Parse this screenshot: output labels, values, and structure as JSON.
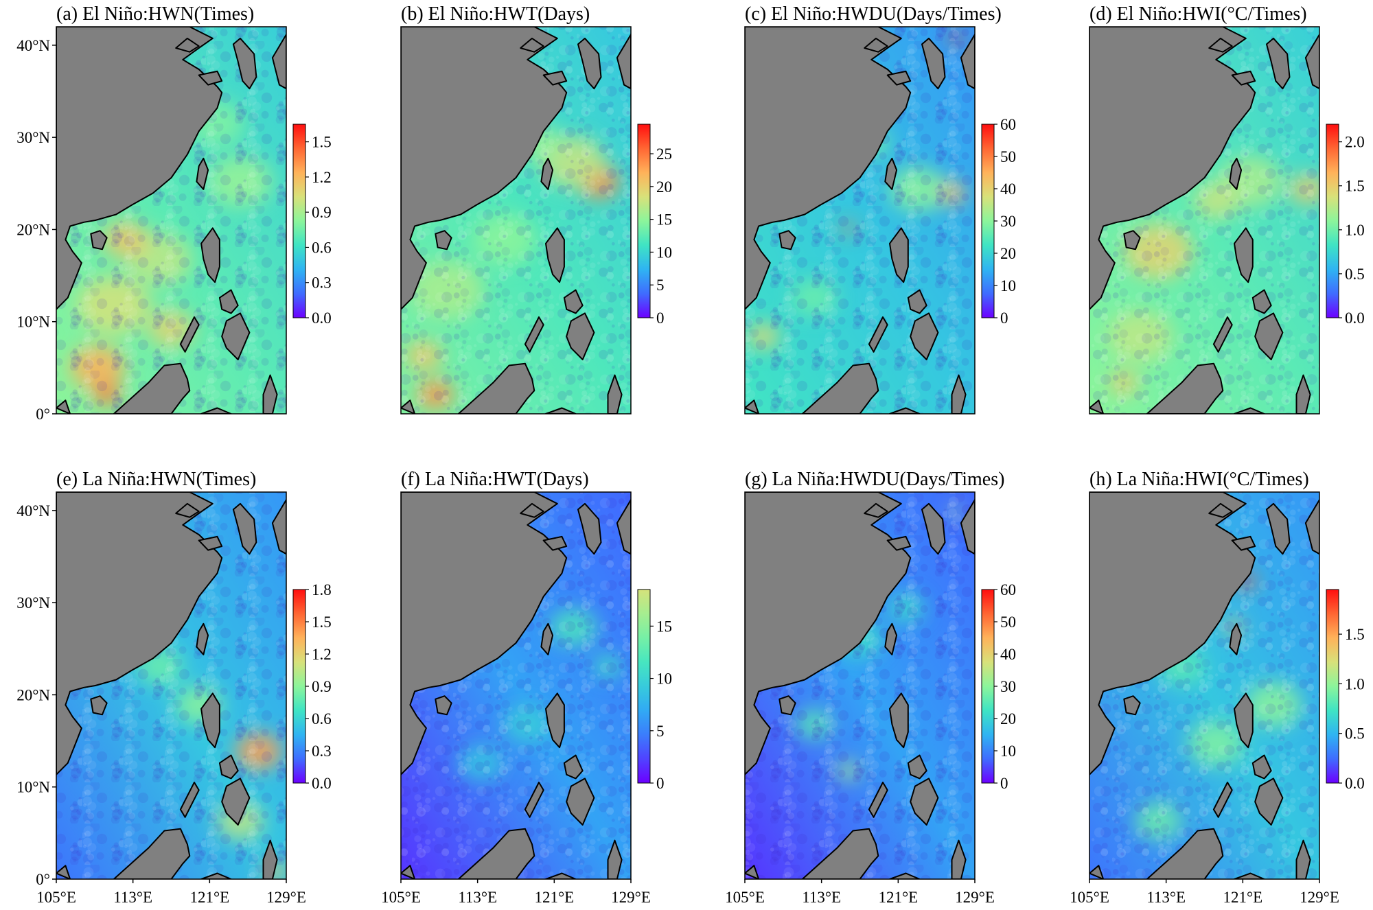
{
  "figure": {
    "panels": [
      {
        "id": "a",
        "title": "(a) El Niño:HWN(Times)",
        "ticks": [
          "0.0",
          "0.3",
          "0.6",
          "0.9",
          "1.2",
          "1.5"
        ],
        "max": 1.65,
        "state": "elnino",
        "variant": 0
      },
      {
        "id": "b",
        "title": "(b) El Niño:HWT(Days)",
        "ticks": [
          "0",
          "5",
          "10",
          "15",
          "20",
          "25"
        ],
        "max": 29.5,
        "state": "elnino",
        "variant": 1
      },
      {
        "id": "c",
        "title": "(c) El Niño:HWDU(Days/Times)",
        "ticks": [
          "0",
          "10",
          "20",
          "30",
          "40",
          "50",
          "60"
        ],
        "max": 60,
        "state": "elnino",
        "variant": 2
      },
      {
        "id": "d",
        "title": "(d) El Niño:HWI(°C/Times)",
        "ticks": [
          "0.0",
          "0.5",
          "1.0",
          "1.5",
          "2.0"
        ],
        "max": 2.2,
        "state": "elnino",
        "variant": 3
      },
      {
        "id": "e",
        "title": "(e) La Niña:HWN(Times)",
        "ticks": [
          "0.0",
          "0.3",
          "0.6",
          "0.9",
          "1.2",
          "1.5",
          "1.8"
        ],
        "max": 1.8,
        "state": "lanina",
        "variant": 4
      },
      {
        "id": "f",
        "title": "(f) La Niña:HWT(Days)",
        "ticks": [
          "0",
          "5",
          "10",
          "15"
        ],
        "max": 18.5,
        "state": "lanina",
        "variant": 5,
        "cbar_top_fraction": 0.62
      },
      {
        "id": "g",
        "title": "(g) La Niña:HWDU(Days/Times)",
        "ticks": [
          "0",
          "10",
          "20",
          "30",
          "40",
          "50",
          "60"
        ],
        "max": 60,
        "state": "lanina",
        "variant": 6
      },
      {
        "id": "h",
        "title": "(h) La Niña:HWI(°C/Times)",
        "ticks": [
          "0.0",
          "0.5",
          "1.0",
          "1.5"
        ],
        "max": 1.95,
        "state": "lanina",
        "variant": 7
      }
    ],
    "lat_labels": [
      "0°",
      "10°N",
      "20°N",
      "30°N",
      "40°N"
    ],
    "lon_labels": [
      "105°E",
      "113°E",
      "121°E",
      "129°E"
    ],
    "colormap": "rainbow",
    "colormap_stops": [
      "#6c00ff",
      "#3f6cff",
      "#2fb4f2",
      "#3fe4c4",
      "#8cf59b",
      "#d8e17a",
      "#ffb25a",
      "#ff6633",
      "#ff0f0f"
    ],
    "land_color": "#808080",
    "coast_color": "#000000"
  }
}
